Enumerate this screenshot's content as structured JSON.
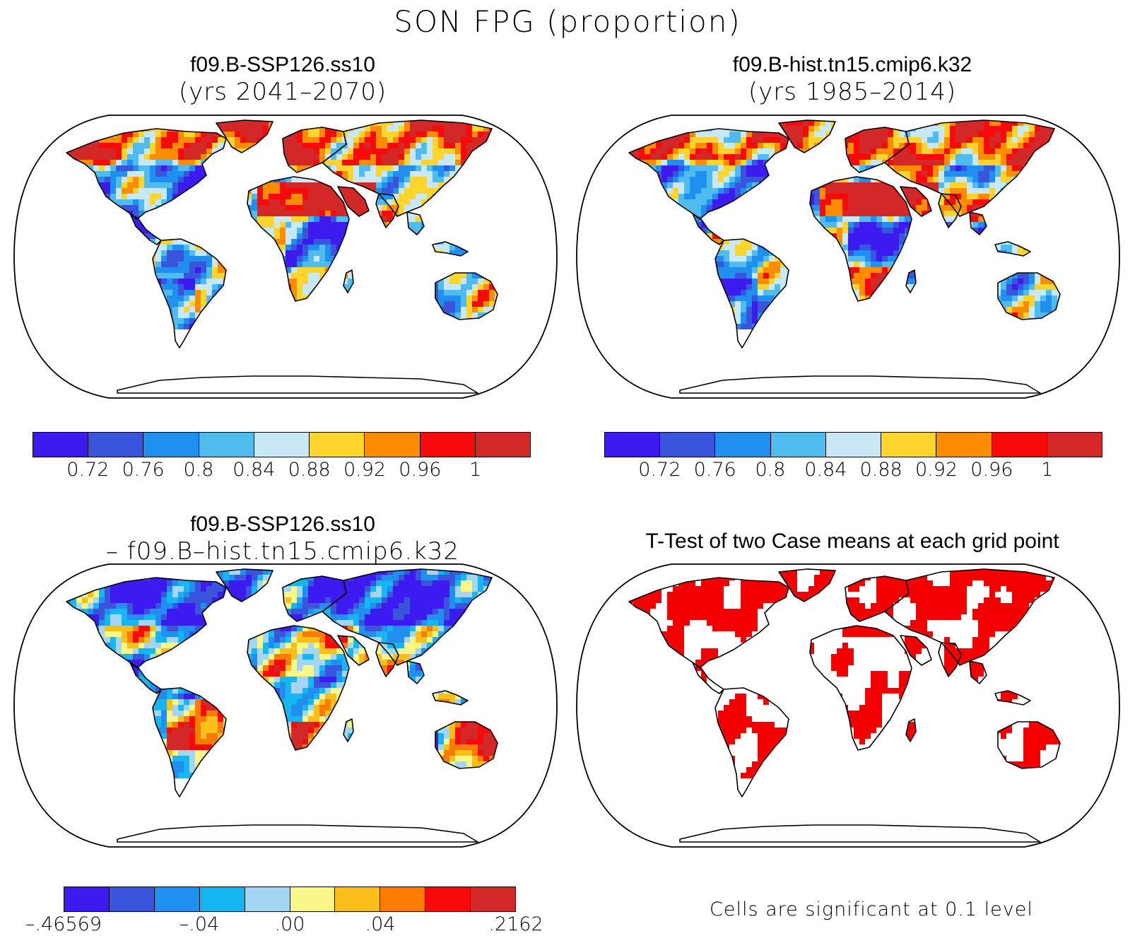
{
  "figure": {
    "title": "SON FPG (proportion)"
  },
  "panels": [
    {
      "id": "future",
      "title": "f09.B-SSP126.ss10",
      "subtitle": "(yrs 2041–2070)",
      "kind": "value"
    },
    {
      "id": "hist",
      "title": "f09.B-hist.tn15.cmip6.k32",
      "subtitle": "(yrs 1985–2014)",
      "kind": "value"
    },
    {
      "id": "diff",
      "title": "f09.B-SSP126.ss10",
      "subtitle": "– f09.B–hist.tn15.cmip6.k32",
      "kind": "diff"
    },
    {
      "id": "ttest",
      "title": "T-Test of two Case means at each grid point",
      "subtitle": "",
      "kind": "ttest"
    }
  ],
  "colorbars": {
    "value": {
      "colors": [
        "#3d1af0",
        "#3a55dc",
        "#1f8ff0",
        "#4fbcf0",
        "#c8e8f6",
        "#fdd52c",
        "#fd8c00",
        "#f80a0a",
        "#d22828"
      ],
      "labels": [
        "0.72",
        "0.76",
        "0.8",
        "0.84",
        "0.88",
        "0.92",
        "0.96",
        "1"
      ]
    },
    "diff": {
      "colors": [
        "#3d1af0",
        "#3a55dc",
        "#1f8ff0",
        "#15b6f2",
        "#a2d6f2",
        "#fbf688",
        "#fbbf1a",
        "#fb7c00",
        "#f80a0a",
        "#d22828"
      ],
      "labels": [
        "–.46569",
        "–.04",
        ".00",
        ".04",
        ".2162"
      ],
      "label_boundaries": [
        0,
        3,
        5,
        7,
        10
      ]
    }
  },
  "ttest_note": "Cells are significant at 0.1 level",
  "ttest_color": "#f40000"
}
